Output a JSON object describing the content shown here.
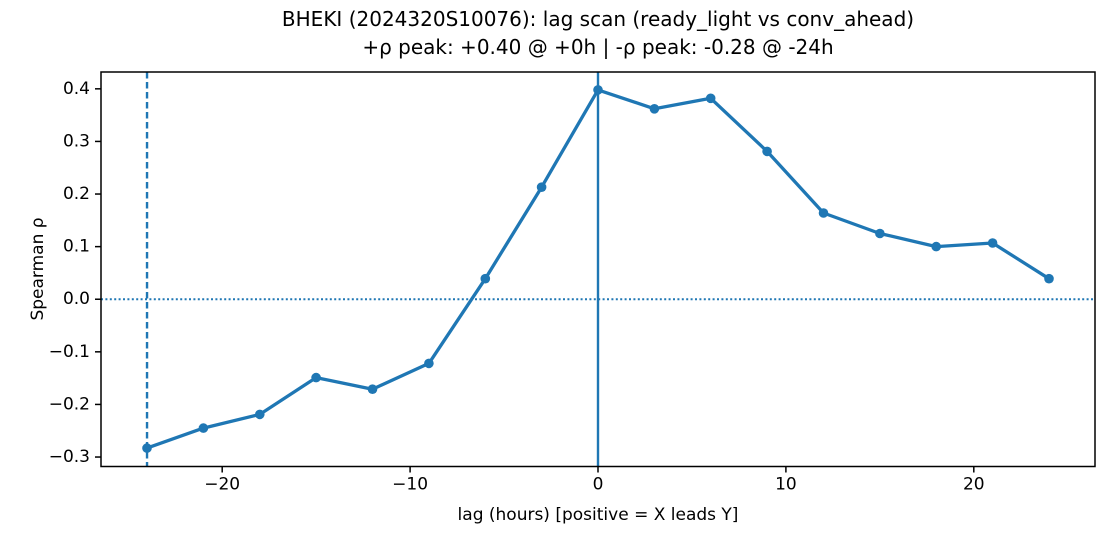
{
  "chart_data": {
    "type": "line",
    "title_line1": "BHEKI (2024320S10076): lag scan (ready_light vs conv_ahead)",
    "title_line2": "+ρ peak: +0.40 @ +0h | -ρ peak: -0.28 @ -24h",
    "xlabel": "lag (hours) [positive = X leads Y]",
    "ylabel": "Spearman ρ",
    "series": [
      {
        "name": "spearman-rho-vs-lag",
        "x": [
          -24,
          -21,
          -18,
          -15,
          -12,
          -9,
          -6,
          -3,
          0,
          3,
          6,
          9,
          12,
          15,
          18,
          21,
          24
        ],
        "y": [
          -0.283,
          -0.245,
          -0.219,
          -0.149,
          -0.171,
          -0.122,
          0.039,
          0.213,
          0.398,
          0.362,
          0.382,
          0.281,
          0.164,
          0.125,
          0.1,
          0.107,
          0.039
        ]
      }
    ],
    "xticks": [
      -20,
      -10,
      0,
      10,
      20
    ],
    "xtick_labels": [
      "−20",
      "−10",
      "0",
      "10",
      "20"
    ],
    "yticks": [
      -0.3,
      -0.2,
      -0.1,
      0.0,
      0.1,
      0.2,
      0.3,
      0.4
    ],
    "ytick_labels": [
      "−0.3",
      "−0.2",
      "−0.1",
      "0.0",
      "0.1",
      "0.2",
      "0.3",
      "0.4"
    ],
    "xlim": [
      -26.45,
      26.45
    ],
    "ylim": [
      -0.318,
      0.432
    ],
    "grid": false,
    "legend": null,
    "annotations": {
      "hline_dotted_y": 0,
      "vline_solid_x": 0,
      "vline_dashed_x": -24
    },
    "peaks": {
      "positive": {
        "rho": "+0.40",
        "lag": "+0h"
      },
      "negative": {
        "rho": "-0.28",
        "lag": "-24h"
      }
    },
    "colors": {
      "line": "#1f77b4",
      "marker": "#1f77b4",
      "reference_lines": "#1f77b4",
      "axis": "#000000",
      "text": "#000000",
      "background": "#ffffff"
    }
  }
}
